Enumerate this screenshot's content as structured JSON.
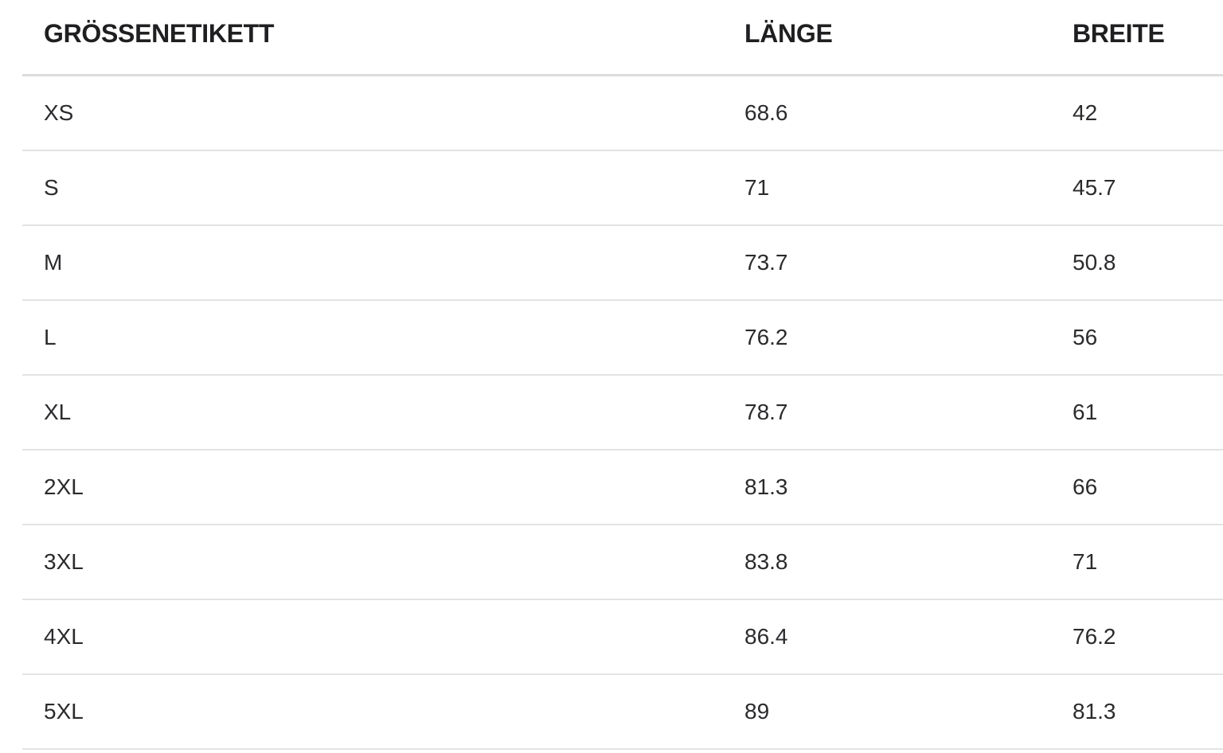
{
  "table": {
    "columns": [
      {
        "key": "size",
        "label": "GRÖSSENETIKETT"
      },
      {
        "key": "length",
        "label": "LÄNGE"
      },
      {
        "key": "width",
        "label": "BREITE"
      }
    ],
    "rows": [
      {
        "size": "XS",
        "length": "68.6",
        "width": "42"
      },
      {
        "size": "S",
        "length": "71",
        "width": "45.7"
      },
      {
        "size": "M",
        "length": "73.7",
        "width": "50.8"
      },
      {
        "size": "L",
        "length": "76.2",
        "width": "56"
      },
      {
        "size": "XL",
        "length": "78.7",
        "width": "61"
      },
      {
        "size": "2XL",
        "length": "81.3",
        "width": "66"
      },
      {
        "size": "3XL",
        "length": "83.8",
        "width": "71"
      },
      {
        "size": "4XL",
        "length": "86.4",
        "width": "76.2"
      },
      {
        "size": "5XL",
        "length": "89",
        "width": "81.3"
      }
    ]
  },
  "colors": {
    "background": "#ffffff",
    "header_text": "#1f1f21",
    "body_text": "#2b2b2e",
    "header_border": "#dcdcdc",
    "row_border": "#e3e3e3"
  }
}
